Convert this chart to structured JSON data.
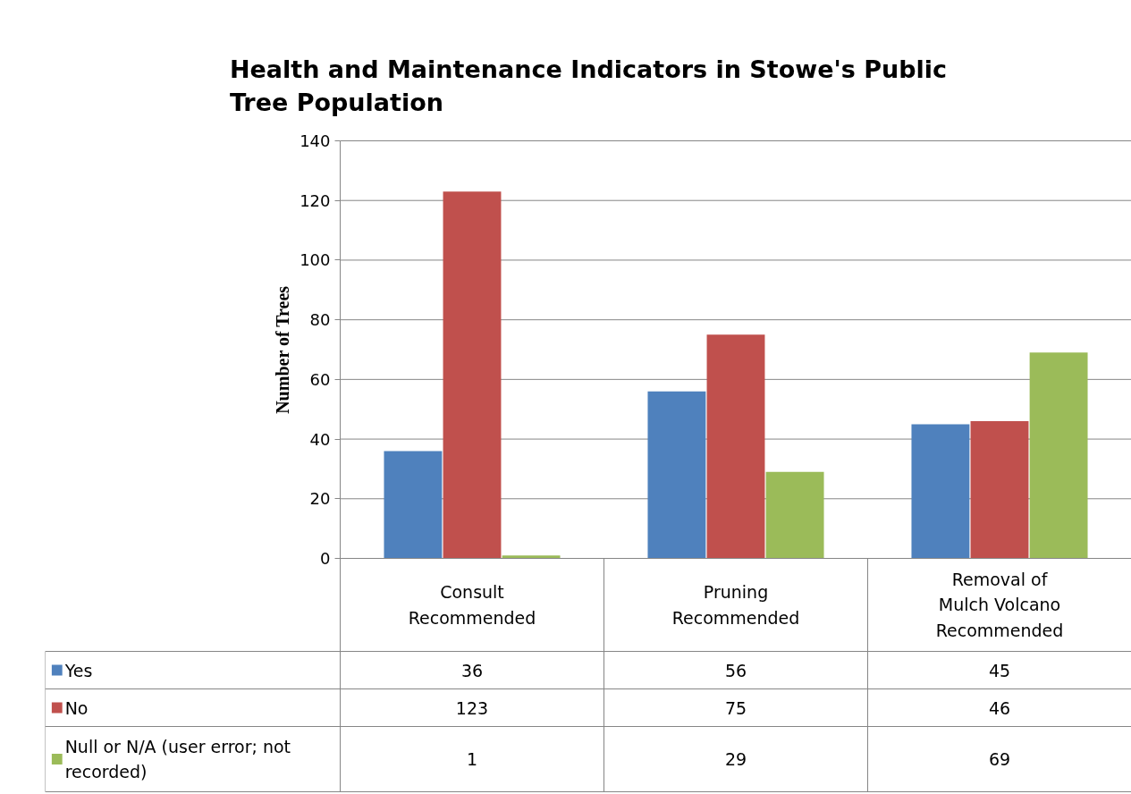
{
  "chart_data": {
    "type": "bar",
    "title": "Health and Maintenance Indicators in Stowe's Public Tree Population",
    "ylabel": "Number of Trees",
    "categories": [
      "Consult Recommended",
      "Pruning Recommended",
      "Removal of Mulch Volcano Recommended"
    ],
    "series": [
      {
        "name": "Yes",
        "color": "#4f81bd",
        "values": [
          36,
          56,
          45
        ]
      },
      {
        "name": "No",
        "color": "#c0504d",
        "values": [
          123,
          75,
          46
        ]
      },
      {
        "name": "Null or N/A (user error; not recorded)",
        "color": "#9bbb59",
        "values": [
          1,
          29,
          69
        ]
      }
    ],
    "ylim": [
      0,
      140
    ],
    "yticks": [
      0,
      20,
      40,
      60,
      80,
      100,
      120,
      140
    ],
    "grid": "y",
    "legend": "bottom",
    "data_labels": true
  }
}
